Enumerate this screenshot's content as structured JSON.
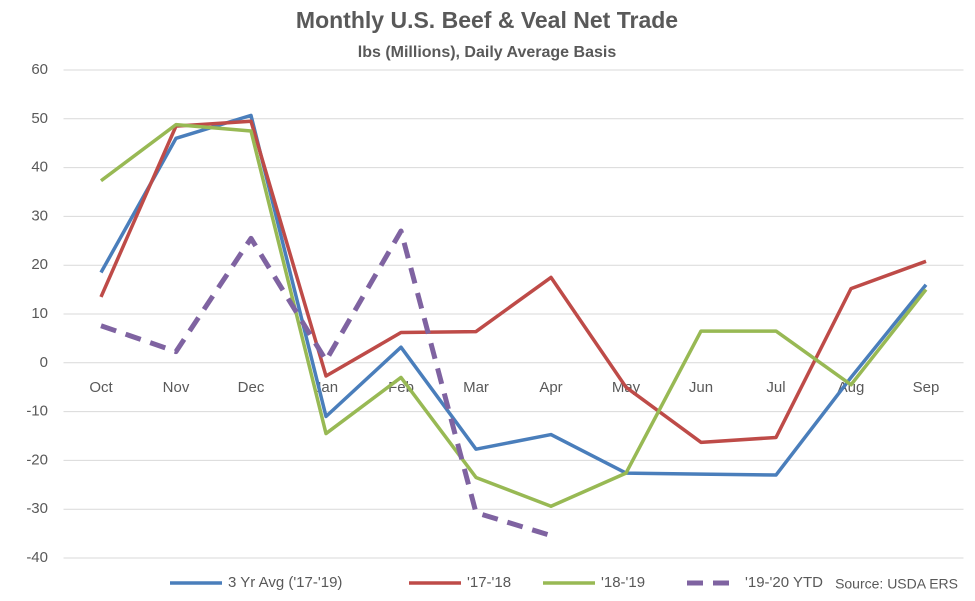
{
  "chart_data": {
    "type": "line",
    "title": "Monthly U.S. Beef & Veal Net Trade",
    "subtitle": "lbs (Millions), Daily Average Basis",
    "source": "Source: USDA ERS",
    "categories": [
      "Oct",
      "Nov",
      "Dec",
      "Jan",
      "Feb",
      "Mar",
      "Apr",
      "May",
      "Jun",
      "Jul",
      "Aug",
      "Sep"
    ],
    "series": [
      {
        "name": "3 Yr Avg ('17-'19)",
        "color": "#4a7ebb",
        "dashed": false,
        "values": [
          18.5,
          46,
          50.7,
          -11,
          3.2,
          -17.7,
          -14.7,
          -22.6,
          -22.8,
          -23,
          -3,
          16
        ]
      },
      {
        "name": "'17-'18",
        "color": "#be4b48",
        "dashed": false,
        "values": [
          13.5,
          48.5,
          49.5,
          -2.7,
          6.2,
          6.4,
          17.5,
          -5,
          -16.3,
          -15.3,
          15.2,
          20.8
        ]
      },
      {
        "name": "'18-'19",
        "color": "#98b954",
        "dashed": false,
        "values": [
          37.3,
          48.8,
          47.5,
          -14.5,
          -3,
          -23.5,
          -29.4,
          -22.6,
          6.5,
          6.5,
          -4.5,
          15
        ]
      },
      {
        "name": "'19-'20 YTD",
        "color": "#7f63a1",
        "dashed": true,
        "values": [
          7.6,
          2.3,
          25.5,
          0.5,
          27,
          -30.7,
          -35.4,
          null,
          null,
          null,
          null,
          null
        ]
      }
    ],
    "ylim": [
      -40,
      60
    ],
    "yticks": [
      -40,
      -30,
      -20,
      -10,
      0,
      10,
      20,
      30,
      40,
      50,
      60
    ],
    "grid": true,
    "legend": "bottom"
  }
}
